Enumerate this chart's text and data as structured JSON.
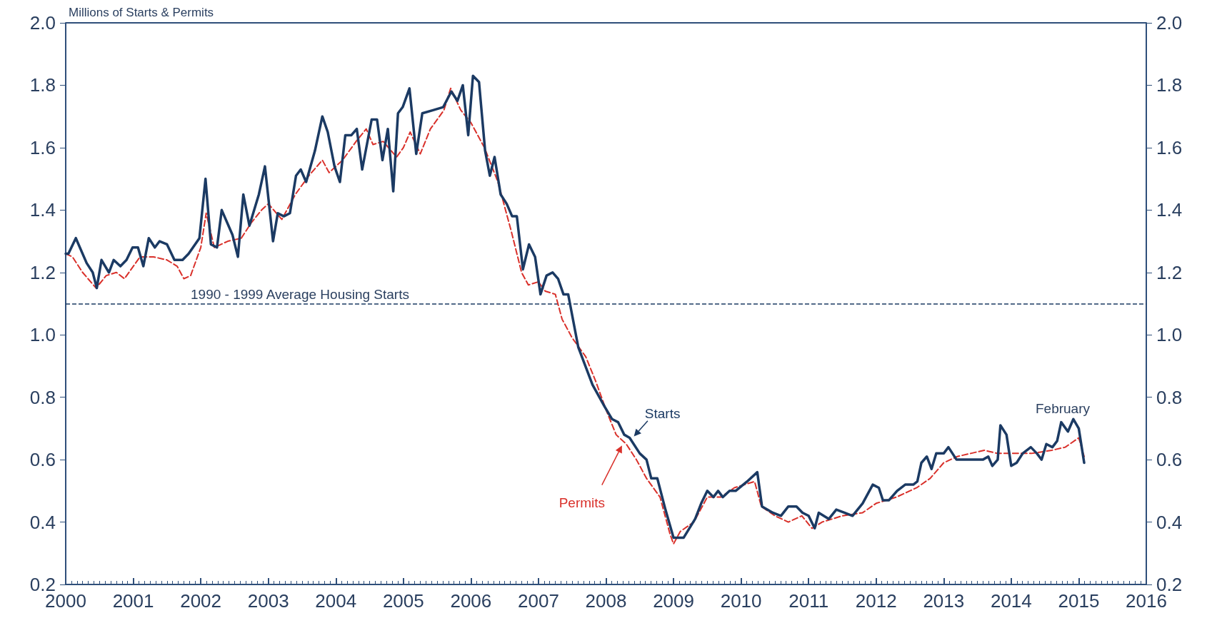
{
  "chart_data": {
    "type": "line",
    "ylabel": "Millions of Starts & Permits",
    "xlim": [
      2000,
      2016
    ],
    "xticks": [
      2000,
      2001,
      2002,
      2003,
      2004,
      2005,
      2006,
      2007,
      2008,
      2009,
      2010,
      2011,
      2012,
      2013,
      2014,
      2015,
      2016
    ],
    "ylim": [
      0.2,
      2.0
    ],
    "yticks": [
      0.2,
      0.4,
      0.6,
      0.8,
      {
        "value": 1,
        "label": "1.0"
      },
      1.2,
      1.4,
      1.6,
      1.8,
      {
        "value": 2,
        "label": "2.0"
      }
    ],
    "y2lim": [
      0.2,
      2.0
    ],
    "y2ticks": [
      0.2,
      0.4,
      0.6,
      0.8,
      {
        "value": 1,
        "label": "1.0"
      },
      1.2,
      1.4,
      1.6,
      1.8,
      {
        "value": 2,
        "label": "2.0"
      }
    ],
    "grid": false,
    "legend": false,
    "marker": "none",
    "series": [
      {
        "name": "Starts",
        "color": "#1b3a63",
        "line_style": "solid",
        "x": [
          2000.0,
          2000.04,
          2000.15,
          2000.31,
          2000.4,
          2000.46,
          2000.53,
          2000.64,
          2000.71,
          2000.81,
          2000.9,
          2000.99,
          2001.07,
          2001.15,
          2001.23,
          2001.32,
          2001.39,
          2001.5,
          2001.61,
          2001.73,
          2001.82,
          2001.98,
          2002.07,
          2002.15,
          2002.24,
          2002.31,
          2002.47,
          2002.55,
          2002.63,
          2002.72,
          2002.86,
          2002.95,
          2003.07,
          2003.14,
          2003.23,
          2003.32,
          2003.41,
          2003.48,
          2003.56,
          2003.69,
          2003.8,
          2003.88,
          2003.98,
          2004.06,
          2004.14,
          2004.23,
          2004.31,
          2004.39,
          2004.53,
          2004.61,
          2004.69,
          2004.77,
          2004.85,
          2004.92,
          2004.99,
          2005.09,
          2005.19,
          2005.28,
          2005.44,
          2005.59,
          2005.71,
          2005.8,
          2005.88,
          2005.96,
          2006.03,
          2006.12,
          2006.21,
          2006.28,
          2006.35,
          2006.44,
          2006.53,
          2006.61,
          2006.68,
          2006.77,
          2006.86,
          2006.95,
          2007.03,
          2007.12,
          2007.21,
          2007.29,
          2007.37,
          2007.44,
          2007.59,
          2007.8,
          2007.98,
          2008.09,
          2008.18,
          2008.27,
          2008.35,
          2008.5,
          2008.6,
          2008.67,
          2008.76,
          2008.88,
          2009.0,
          2009.15,
          2009.32,
          2009.41,
          2009.5,
          2009.59,
          2009.66,
          2009.73,
          2009.83,
          2009.92,
          2010.09,
          2010.24,
          2010.31,
          2010.47,
          2010.59,
          2010.7,
          2010.82,
          2010.91,
          2011.0,
          2011.09,
          2011.15,
          2011.3,
          2011.41,
          2011.53,
          2011.65,
          2011.8,
          2011.95,
          2012.04,
          2012.1,
          2012.19,
          2012.31,
          2012.43,
          2012.55,
          2012.61,
          2012.67,
          2012.75,
          2012.82,
          2012.89,
          2013.0,
          2013.07,
          2013.19,
          2013.31,
          2013.49,
          2013.58,
          2013.66,
          2013.72,
          2013.8,
          2013.84,
          2013.93,
          2014.0,
          2014.08,
          2014.17,
          2014.29,
          2014.38,
          2014.45,
          2014.52,
          2014.61,
          2014.68,
          2014.74,
          2014.84,
          2014.92,
          2015.0,
          2015.08
        ],
        "values": [
          1.26,
          1.26,
          1.31,
          1.23,
          1.2,
          1.15,
          1.24,
          1.2,
          1.24,
          1.22,
          1.24,
          1.28,
          1.28,
          1.22,
          1.31,
          1.28,
          1.3,
          1.29,
          1.24,
          1.24,
          1.26,
          1.31,
          1.5,
          1.29,
          1.28,
          1.4,
          1.32,
          1.25,
          1.45,
          1.35,
          1.45,
          1.54,
          1.3,
          1.39,
          1.38,
          1.39,
          1.51,
          1.53,
          1.49,
          1.59,
          1.7,
          1.65,
          1.54,
          1.49,
          1.64,
          1.64,
          1.66,
          1.53,
          1.69,
          1.69,
          1.56,
          1.66,
          1.46,
          1.71,
          1.73,
          1.79,
          1.58,
          1.71,
          1.72,
          1.73,
          1.78,
          1.75,
          1.8,
          1.64,
          1.83,
          1.81,
          1.59,
          1.51,
          1.57,
          1.45,
          1.42,
          1.38,
          1.38,
          1.21,
          1.29,
          1.25,
          1.13,
          1.19,
          1.2,
          1.18,
          1.13,
          1.13,
          0.96,
          0.84,
          0.77,
          0.73,
          0.72,
          0.68,
          0.67,
          0.62,
          0.6,
          0.54,
          0.54,
          0.44,
          0.35,
          0.35,
          0.41,
          0.46,
          0.5,
          0.48,
          0.5,
          0.48,
          0.5,
          0.5,
          0.53,
          0.56,
          0.45,
          0.43,
          0.42,
          0.45,
          0.45,
          0.43,
          0.42,
          0.38,
          0.43,
          0.41,
          0.44,
          0.43,
          0.42,
          0.46,
          0.52,
          0.51,
          0.47,
          0.47,
          0.5,
          0.52,
          0.52,
          0.53,
          0.59,
          0.61,
          0.57,
          0.62,
          0.62,
          0.64,
          0.6,
          0.6,
          0.6,
          0.6,
          0.61,
          0.58,
          0.6,
          0.71,
          0.68,
          0.58,
          0.59,
          0.62,
          0.64,
          0.62,
          0.6,
          0.65,
          0.64,
          0.66,
          0.72,
          0.69,
          0.73,
          0.7,
          0.59
        ]
      },
      {
        "name": "Permits",
        "color": "#d9302a",
        "line_style": "dashed",
        "x": [
          2000.0,
          2000.1,
          2000.25,
          2000.45,
          2000.6,
          2000.75,
          2000.87,
          2001.1,
          2001.3,
          2001.5,
          2001.65,
          2001.75,
          2001.85,
          2002.0,
          2002.08,
          2002.2,
          2002.4,
          2002.6,
          2002.75,
          2002.9,
          2003.0,
          2003.2,
          2003.4,
          2003.6,
          2003.8,
          2003.9,
          2004.1,
          2004.3,
          2004.45,
          2004.55,
          2004.7,
          2004.9,
          2005.0,
          2005.1,
          2005.25,
          2005.4,
          2005.6,
          2005.7,
          2005.85,
          2006.0,
          2006.2,
          2006.4,
          2006.6,
          2006.75,
          2006.85,
          2007.0,
          2007.1,
          2007.25,
          2007.35,
          2007.5,
          2007.7,
          2007.85,
          2008.0,
          2008.15,
          2008.3,
          2008.45,
          2008.6,
          2008.8,
          2008.95,
          2009.0,
          2009.1,
          2009.3,
          2009.5,
          2009.7,
          2009.9,
          2010.2,
          2010.3,
          2010.5,
          2010.7,
          2010.9,
          2011.05,
          2011.2,
          2011.5,
          2011.8,
          2012.0,
          2012.3,
          2012.6,
          2012.8,
          2013.0,
          2013.2,
          2013.4,
          2013.6,
          2013.8,
          2014.0,
          2014.3,
          2014.6,
          2014.8,
          2015.0,
          2015.08
        ],
        "values": [
          1.26,
          1.25,
          1.2,
          1.15,
          1.19,
          1.2,
          1.18,
          1.25,
          1.25,
          1.24,
          1.22,
          1.18,
          1.19,
          1.28,
          1.39,
          1.28,
          1.3,
          1.31,
          1.36,
          1.4,
          1.42,
          1.37,
          1.45,
          1.51,
          1.56,
          1.52,
          1.56,
          1.62,
          1.66,
          1.61,
          1.62,
          1.57,
          1.6,
          1.65,
          1.58,
          1.66,
          1.72,
          1.79,
          1.72,
          1.68,
          1.6,
          1.49,
          1.33,
          1.2,
          1.16,
          1.17,
          1.14,
          1.13,
          1.05,
          0.99,
          0.93,
          0.85,
          0.76,
          0.68,
          0.65,
          0.6,
          0.54,
          0.48,
          0.36,
          0.33,
          0.37,
          0.4,
          0.48,
          0.48,
          0.51,
          0.53,
          0.45,
          0.42,
          0.4,
          0.42,
          0.38,
          0.4,
          0.42,
          0.43,
          0.46,
          0.48,
          0.51,
          0.54,
          0.59,
          0.61,
          0.62,
          0.63,
          0.62,
          0.62,
          0.62,
          0.63,
          0.64,
          0.67,
          0.61
        ]
      }
    ],
    "ref_lines": [
      {
        "axis": "y",
        "value": 1.1,
        "label": "1990 - 1999 Average Housing Starts",
        "color": "#1b3a63",
        "line_style": "dashed"
      }
    ],
    "annotations": [
      "February"
    ]
  }
}
